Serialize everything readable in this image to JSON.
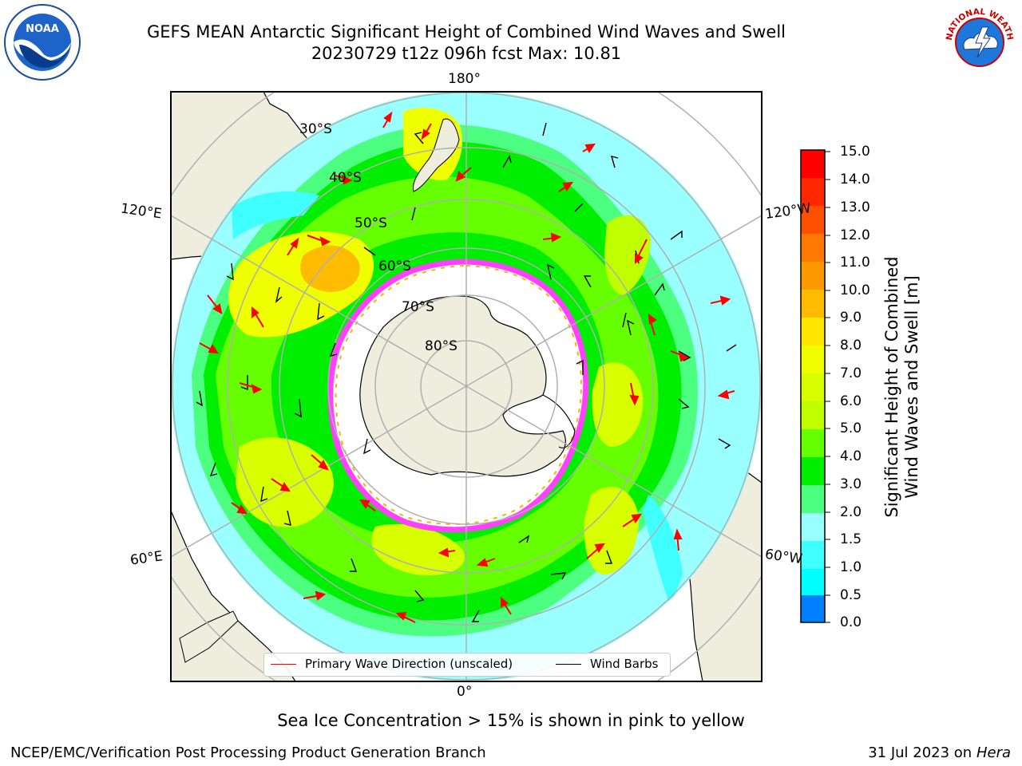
{
  "header": {
    "title_line1": "GEFS MEAN Antarctic Significant Height of Combined Wind Waves and Swell",
    "title_line2": "20230729 t12z 096h fcst   Max: 10.81"
  },
  "map": {
    "projection": "south-polar-stereographic",
    "longitude_labels": {
      "top": "180°",
      "bottom": "0°",
      "left_upper": "120°E",
      "left_lower": "60°E",
      "right_upper": "120°W",
      "right_lower": "60°W"
    },
    "latitude_labels": [
      "30°S",
      "40°S",
      "50°S",
      "60°S",
      "70°S",
      "80°S"
    ],
    "land_color": "#efedde",
    "ice_edge_colors": [
      "#ff40ff",
      "#ffb000",
      "#ffff00"
    ]
  },
  "colorbar": {
    "label_line1": "Significant Height of Combined",
    "label_line2": "Wind Waves and Swell [m]",
    "ticks": [
      "15.0",
      "14.0",
      "13.0",
      "12.0",
      "11.0",
      "10.0",
      "9.0",
      "8.0",
      "7.0",
      "6.0",
      "5.0",
      "4.0",
      "3.0",
      "2.0",
      "1.5",
      "1.0",
      "0.5",
      "0.0"
    ],
    "colors_top_to_bottom": [
      "#ff0000",
      "#ff2800",
      "#ff5000",
      "#ff7800",
      "#ff9900",
      "#ffbb00",
      "#ffe600",
      "#f0ff00",
      "#d8ff00",
      "#c0ff00",
      "#66ff00",
      "#00ee00",
      "#4dff80",
      "#99ffff",
      "#40ffff",
      "#00ffff",
      "#0080ff",
      "#0000ff"
    ]
  },
  "legend": {
    "wave_label": "Primary Wave Direction (unscaled)",
    "wind_label": "Wind Barbs"
  },
  "footer": {
    "ice_note": "Sea Ice Concentration > 15% is shown in pink to yellow",
    "left": "NCEP/EMC/Verification Post Processing Product Generation Branch",
    "right_prefix": "31 Jul 2023 on ",
    "right_italic": "Hera"
  },
  "logos": {
    "noaa_text": "NOAA",
    "nws_text": "NATIONAL WEATHER SERVICE"
  }
}
